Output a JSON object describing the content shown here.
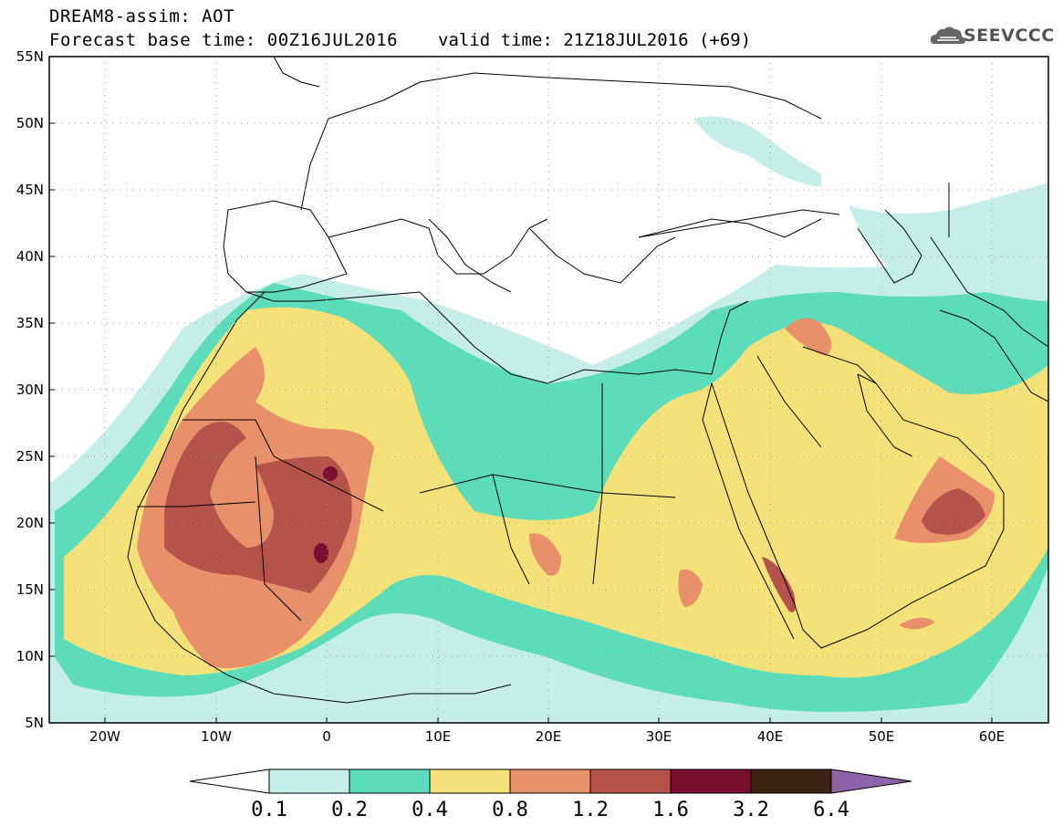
{
  "header": {
    "title": "DREAM8-assim: AOT",
    "base_time": "Forecast base time: 00Z16JUL2016",
    "valid_time": "valid time: 21Z18JUL2016 (+69)",
    "logo_text": "SEEVCCC"
  },
  "map": {
    "lon_range": [
      -25,
      65
    ],
    "lat_range": [
      5,
      55
    ],
    "lat_ticks": [
      "5N",
      "10N",
      "15N",
      "20N",
      "25N",
      "30N",
      "35N",
      "40N",
      "45N",
      "50N",
      "55N"
    ],
    "lon_ticks": [
      "20W",
      "10W",
      "0",
      "10E",
      "20E",
      "30E",
      "40E",
      "50E",
      "60E"
    ],
    "grid": "dotted"
  },
  "colorbar": {
    "labels": [
      "0.1",
      "0.2",
      "0.4",
      "0.8",
      "1.2",
      "1.6",
      "3.2",
      "6.4"
    ],
    "colors": [
      "#c6eee8",
      "#5cdcb8",
      "#f5e17a",
      "#e8906a",
      "#b5534a",
      "#7a0e2e",
      "#3b2414",
      "#8e62a8"
    ],
    "under_color": "#ffffff"
  },
  "colors": {
    "c1": "#c6eee8",
    "c2": "#5cdcb8",
    "c3": "#f5e17a",
    "c4": "#e8906a",
    "c5": "#b5534a",
    "c6": "#7a0e2e",
    "ocean": "#ffffff",
    "border": "#000000"
  }
}
